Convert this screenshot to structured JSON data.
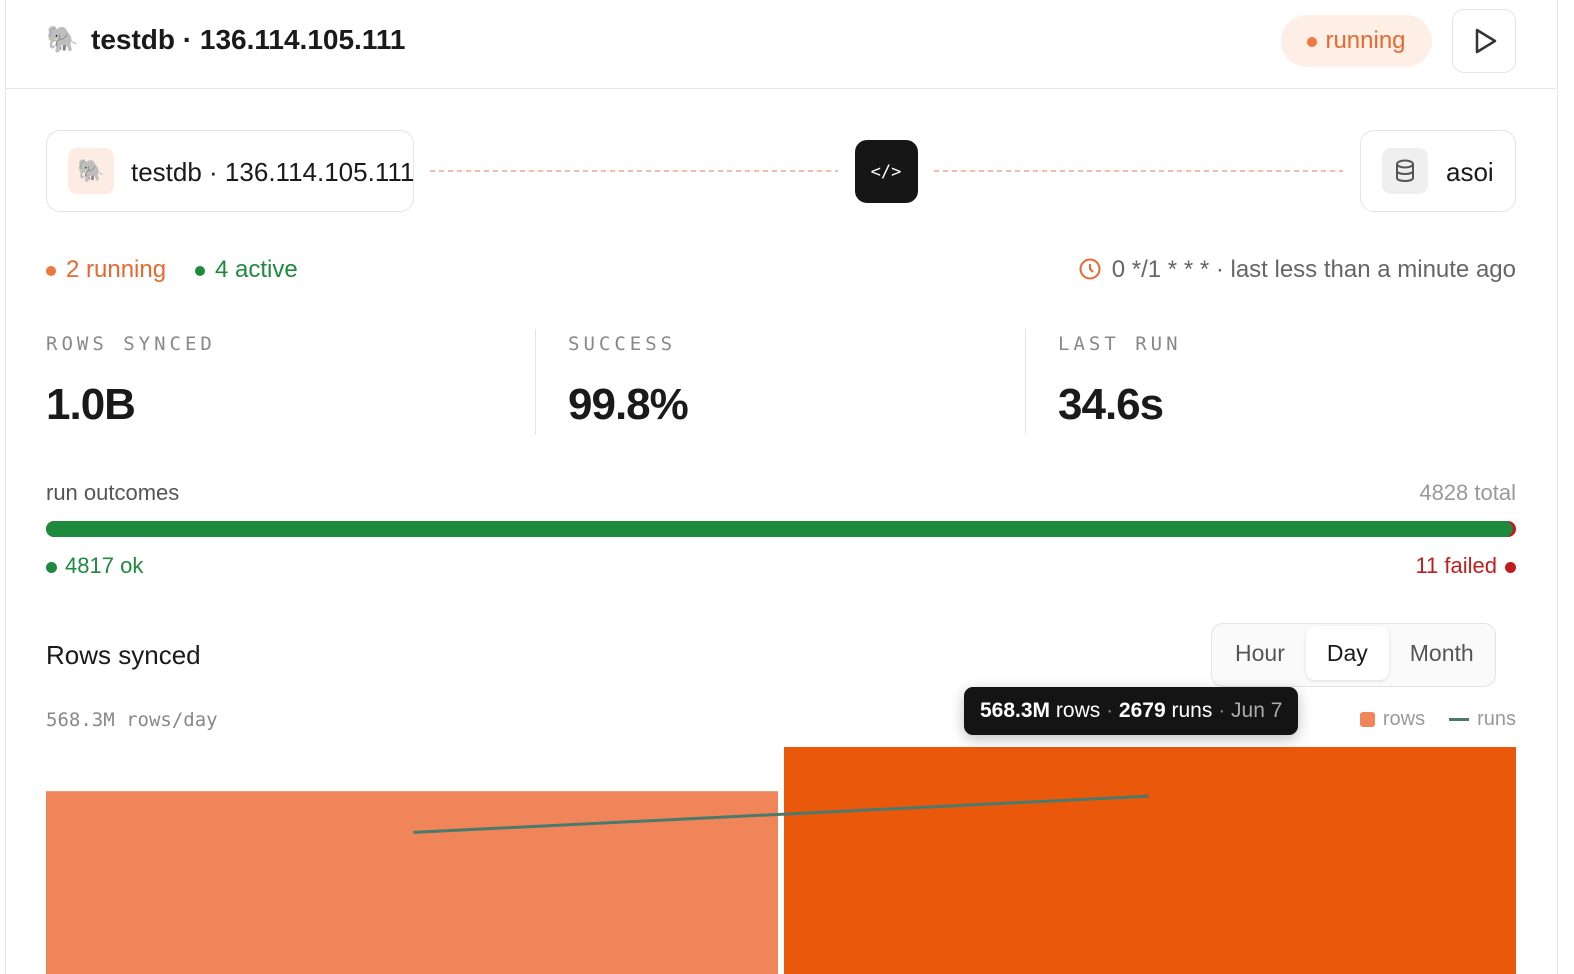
{
  "header": {
    "title": "testdb · 136.114.105.111",
    "status": "running"
  },
  "pipeline": {
    "source": "testdb · 136.114.105.111",
    "destination": "asoi"
  },
  "jobs": {
    "running": "2 running",
    "active": "4 active",
    "schedule": "0 */1 * * * · last less than a minute ago"
  },
  "stats": [
    {
      "label": "ROWS SYNCED",
      "value": "1.0B"
    },
    {
      "label": "SUCCESS",
      "value": "99.8%"
    },
    {
      "label": "LAST RUN",
      "value": "34.6s"
    }
  ],
  "outcomes": {
    "title": "run outcomes",
    "total": 4828,
    "total_label": "total",
    "ok": 4817,
    "ok_label": "ok",
    "failed": 11,
    "failed_label": "failed",
    "ok_color": "#1e8a3e",
    "failed_color": "#c21d1d"
  },
  "chart_data": {
    "type": "bar",
    "title": "Rows synced",
    "periods": [
      "Hour",
      "Day",
      "Month"
    ],
    "selected_period": "Day",
    "axis_label": "568.3M rows/day",
    "categories": [
      null,
      "Jun 7"
    ],
    "series": [
      {
        "name": "rows",
        "colors": [
          "#f0855a",
          "#ea580c"
        ],
        "color": "#f0855a",
        "values": [
          460000000,
          568300000
        ],
        "value_labels": [
          null,
          "568.3M"
        ]
      },
      {
        "name": "runs",
        "color": "#4a7a6c",
        "axis": "y2",
        "values": [
          2149,
          2679
        ]
      }
    ],
    "ylim": [
      0,
      568300000
    ],
    "y2lim": [
      0,
      3400
    ]
  }
}
